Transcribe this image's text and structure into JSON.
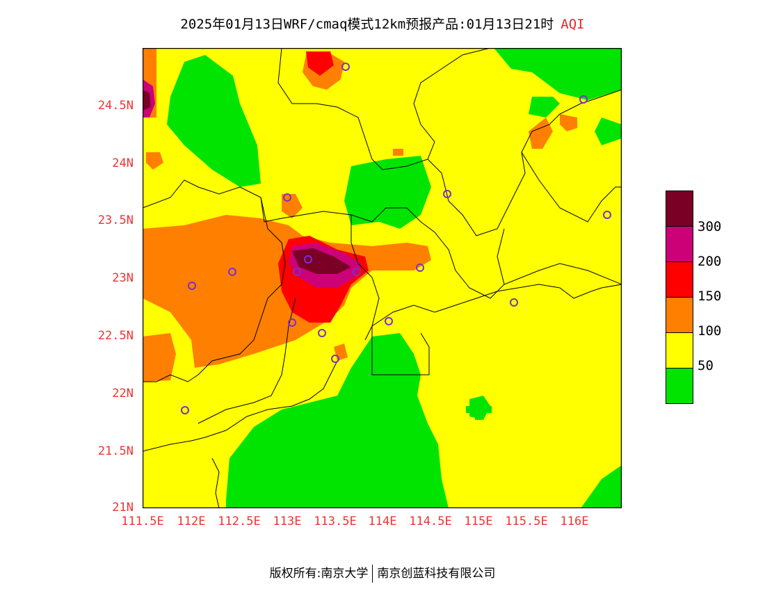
{
  "title": {
    "main": "2025年01月13日WRF/cmaq模式12km预报产品:01月13日21时",
    "aqi": "AQI"
  },
  "y_ticks": [
    "24.5N",
    "24N",
    "23.5N",
    "23N",
    "22.5N",
    "22N",
    "21.5N",
    "21N"
  ],
  "x_ticks": [
    "111.5E",
    "112E",
    "112.5E",
    "113E",
    "113.5E",
    "114E",
    "114.5E",
    "115E",
    "115.5E",
    "116E"
  ],
  "legend": {
    "colors": [
      "#7a0026",
      "#cc0077",
      "#ff0000",
      "#ff7f00",
      "#ffff00",
      "#00e400"
    ],
    "labels": [
      "300",
      "200",
      "150",
      "100",
      "50"
    ]
  },
  "map_colors": {
    "good": "#00e400",
    "moderate": "#ffff00",
    "usg": "#ff7f00",
    "unhealthy": "#ff0000",
    "very_unhealthy": "#cc0077",
    "hazardous": "#7a0026",
    "station": "#7a2fd0"
  },
  "footer": {
    "left": "版权所有:南京大学",
    "right": "南京创蓝科技有限公司"
  }
}
